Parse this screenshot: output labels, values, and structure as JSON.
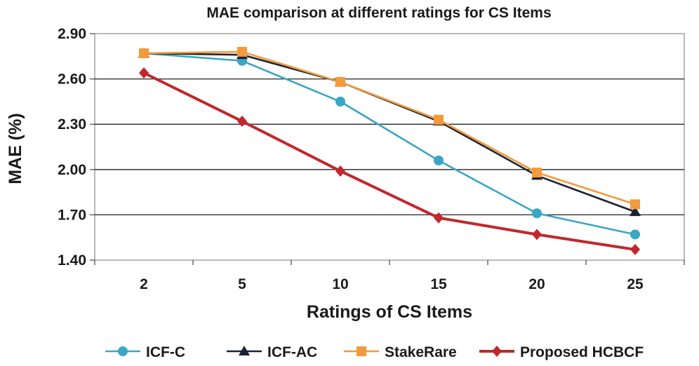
{
  "chart_data": {
    "type": "line",
    "title": "MAE comparison  at different ratings for CS Items",
    "xlabel": "Ratings of CS Items",
    "ylabel": "MAE (%)",
    "categories": [
      "2",
      "5",
      "10",
      "15",
      "20",
      "25"
    ],
    "ylim": [
      1.4,
      2.9
    ],
    "yticks": [
      "1.40",
      "1.70",
      "2.00",
      "2.30",
      "2.60",
      "2.90"
    ],
    "grid": true,
    "legend_position": "bottom",
    "series": [
      {
        "name": "ICF-C",
        "marker": "circle",
        "color": "#3aa6c4",
        "values": [
          2.77,
          2.72,
          2.45,
          2.06,
          1.71,
          1.57
        ]
      },
      {
        "name": "ICF-AC",
        "marker": "triangle",
        "color": "#1b2233",
        "values": [
          2.77,
          2.76,
          2.58,
          2.32,
          1.96,
          1.72
        ]
      },
      {
        "name": "StakeRare",
        "marker": "square",
        "color": "#f29a3c",
        "values": [
          2.77,
          2.78,
          2.58,
          2.33,
          1.98,
          1.77
        ]
      },
      {
        "name": "Proposed HCBCF",
        "marker": "diamond",
        "color": "#c0282d",
        "values": [
          2.64,
          2.32,
          1.99,
          1.68,
          1.57,
          1.47
        ]
      }
    ]
  }
}
